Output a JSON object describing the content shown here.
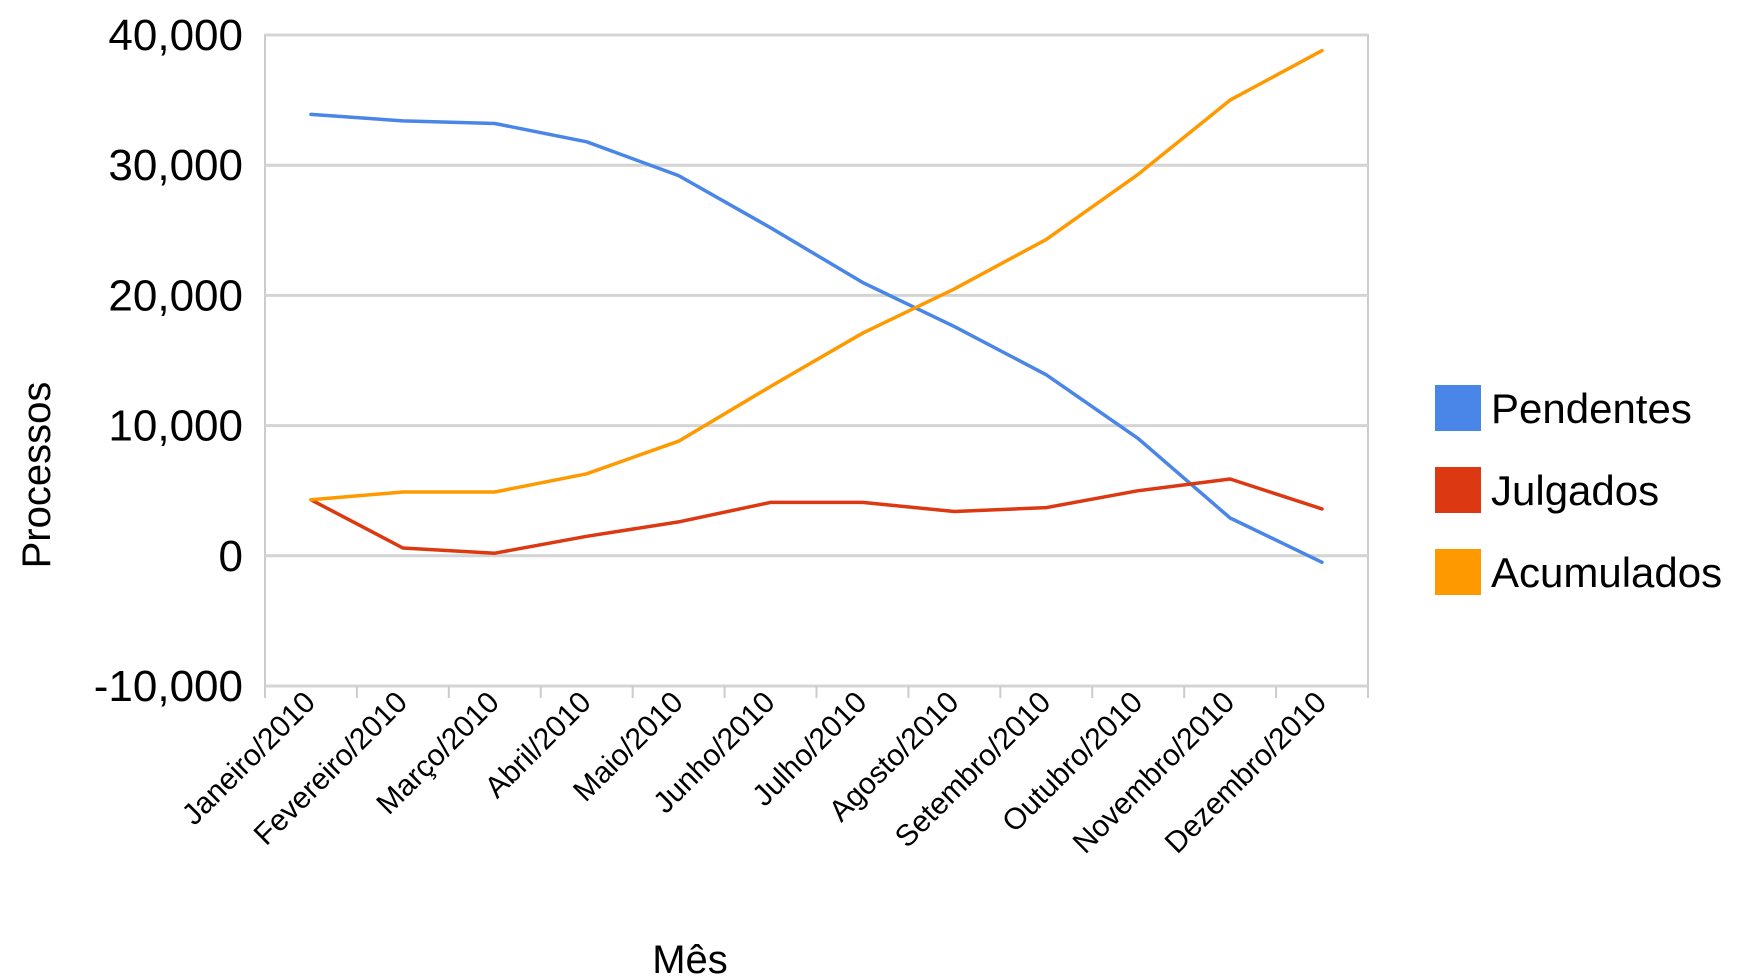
{
  "chart_data": {
    "type": "line",
    "title": "",
    "xlabel": "Mês",
    "ylabel": "Processos",
    "categories": [
      "Janeiro/2010",
      "Fevereiro/2010",
      "Março/2010",
      "Abril/2010",
      "Maio/2010",
      "Junho/2010",
      "Julho/2010",
      "Agosto/2010",
      "Setembro/2010",
      "Outubro/2010",
      "Novembro/2010",
      "Dezembro/2010"
    ],
    "ylim": [
      -10000,
      40000
    ],
    "yticks": [
      -10000,
      0,
      10000,
      20000,
      30000,
      40000
    ],
    "ytick_labels": [
      "-10,000",
      "0",
      "10,000",
      "20,000",
      "30,000",
      "40,000"
    ],
    "grid": true,
    "legend_position": "right",
    "series": [
      {
        "name": "Pendentes",
        "color": "#4a86e8",
        "values": [
          33900,
          33400,
          33200,
          31800,
          29200,
          25200,
          21000,
          17600,
          13900,
          9000,
          2900,
          -500
        ]
      },
      {
        "name": "Julgados",
        "color": "#dc3912",
        "values": [
          4300,
          600,
          200,
          1500,
          2600,
          4100,
          4100,
          3400,
          3700,
          5000,
          5900,
          3600
        ]
      },
      {
        "name": "Acumulados",
        "color": "#ff9900",
        "values": [
          4300,
          4900,
          4900,
          6300,
          8800,
          13000,
          17100,
          20500,
          24300,
          29300,
          35000,
          38800
        ]
      }
    ]
  }
}
